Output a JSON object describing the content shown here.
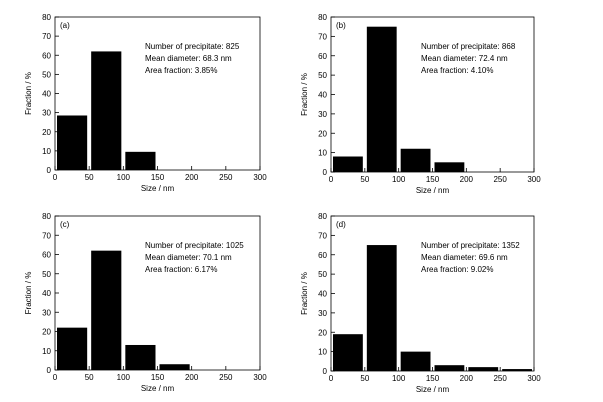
{
  "chart_data": [
    {
      "type": "bar",
      "panel_label": "(a)",
      "xlabel": "Size / nm",
      "ylabel": "Fraction / %",
      "xlim": [
        0,
        300
      ],
      "ylim": [
        0,
        80
      ],
      "xticks": [
        0,
        50,
        100,
        150,
        200,
        250,
        300
      ],
      "yticks": [
        0,
        10,
        20,
        30,
        40,
        50,
        60,
        70,
        80
      ],
      "bin_width": 50,
      "bins": [
        {
          "start": 0,
          "end": 50,
          "value": 28.5
        },
        {
          "start": 50,
          "end": 100,
          "value": 62
        },
        {
          "start": 100,
          "end": 150,
          "value": 9.5
        }
      ],
      "annotations": [
        "Number of precipitate: 825",
        "Mean diameter: 68.3 nm",
        "Area fraction: 3.85%"
      ],
      "bar_color": "#000000"
    },
    {
      "type": "bar",
      "panel_label": "(b)",
      "xlabel": "Size / nm",
      "ylabel": "Fraction / %",
      "xlim": [
        0,
        300
      ],
      "ylim": [
        0,
        80
      ],
      "xticks": [
        0,
        50,
        100,
        150,
        200,
        250,
        300
      ],
      "yticks": [
        0,
        10,
        20,
        30,
        40,
        50,
        60,
        70,
        80
      ],
      "bin_width": 50,
      "bins": [
        {
          "start": 0,
          "end": 50,
          "value": 8
        },
        {
          "start": 50,
          "end": 100,
          "value": 75
        },
        {
          "start": 100,
          "end": 150,
          "value": 12
        },
        {
          "start": 150,
          "end": 200,
          "value": 5
        }
      ],
      "annotations": [
        "Number of precipitate: 868",
        "Mean diameter: 72.4 nm",
        "Area fraction: 4.10%"
      ],
      "bar_color": "#000000"
    },
    {
      "type": "bar",
      "panel_label": "(c)",
      "xlabel": "Size / nm",
      "ylabel": "Fraction / %",
      "xlim": [
        0,
        300
      ],
      "ylim": [
        0,
        80
      ],
      "xticks": [
        0,
        50,
        100,
        150,
        200,
        250,
        300
      ],
      "yticks": [
        0,
        10,
        20,
        30,
        40,
        50,
        60,
        70,
        80
      ],
      "bin_width": 50,
      "bins": [
        {
          "start": 0,
          "end": 50,
          "value": 22
        },
        {
          "start": 50,
          "end": 100,
          "value": 62
        },
        {
          "start": 100,
          "end": 150,
          "value": 13
        },
        {
          "start": 150,
          "end": 200,
          "value": 3
        }
      ],
      "annotations": [
        "Number of precipitate: 1025",
        "Mean diameter: 70.1 nm",
        "Area fraction: 6.17%"
      ],
      "bar_color": "#000000"
    },
    {
      "type": "bar",
      "panel_label": "(d)",
      "xlabel": "Size / nm",
      "ylabel": "Fraction / %",
      "xlim": [
        0,
        300
      ],
      "ylim": [
        0,
        80
      ],
      "xticks": [
        0,
        50,
        100,
        150,
        200,
        250,
        300
      ],
      "yticks": [
        0,
        10,
        20,
        30,
        40,
        50,
        60,
        70,
        80
      ],
      "bin_width": 50,
      "bins": [
        {
          "start": 0,
          "end": 50,
          "value": 19
        },
        {
          "start": 50,
          "end": 100,
          "value": 65
        },
        {
          "start": 100,
          "end": 150,
          "value": 10
        },
        {
          "start": 150,
          "end": 200,
          "value": 3
        },
        {
          "start": 200,
          "end": 250,
          "value": 2
        },
        {
          "start": 250,
          "end": 300,
          "value": 1
        }
      ],
      "annotations": [
        "Number of precipitate: 1352",
        "Mean diameter: 69.6 nm",
        "Area fraction: 9.02%"
      ],
      "bar_color": "#000000"
    }
  ]
}
